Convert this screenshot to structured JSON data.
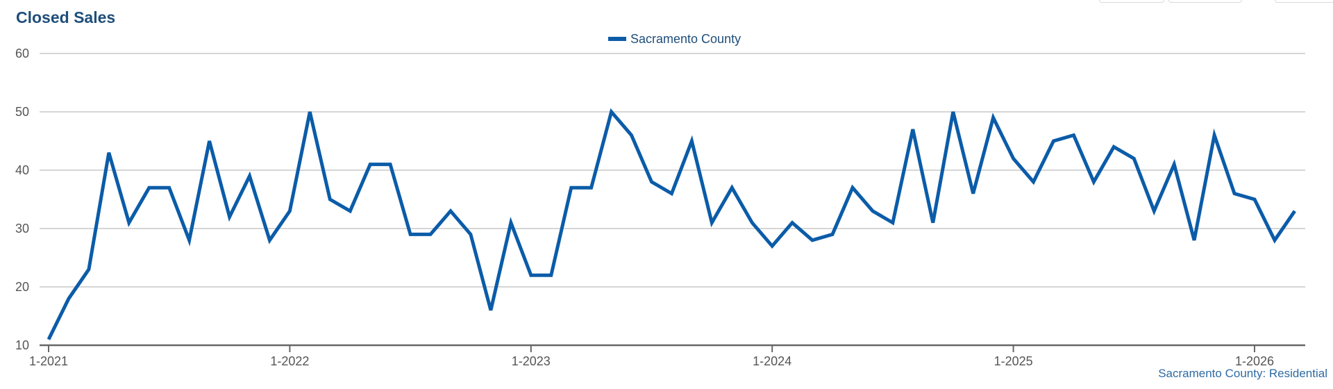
{
  "title": "Closed Sales",
  "footer": "Sacramento County: Residential",
  "colors": {
    "series": "#0b5ca8",
    "grid": "#c8c8c8",
    "axis": "#666666",
    "title": "#1f4e79"
  },
  "chart_data": {
    "type": "line",
    "title": "Closed Sales",
    "ylim": [
      10,
      60
    ],
    "yticks": [
      10,
      20,
      30,
      40,
      50,
      60
    ],
    "x_start": "1-2021",
    "x_frequency": "monthly",
    "xticks": [
      "1-2021",
      "1-2022",
      "1-2023",
      "1-2024",
      "1-2025",
      "1-2026"
    ],
    "grid": true,
    "legend_position": "top-center",
    "series": [
      {
        "name": "Sacramento County",
        "values": [
          11,
          18,
          23,
          43,
          31,
          37,
          37,
          28,
          45,
          32,
          39,
          28,
          33,
          50,
          35,
          33,
          41,
          41,
          29,
          29,
          33,
          29,
          16,
          31,
          22,
          22,
          37,
          37,
          50,
          46,
          38,
          36,
          45,
          31,
          37,
          31,
          27,
          31,
          28,
          29,
          37,
          33,
          31,
          47,
          31,
          50,
          36,
          49,
          42,
          38,
          45,
          46,
          38,
          44,
          42,
          33,
          41,
          28,
          46,
          36,
          35,
          28,
          33
        ]
      }
    ]
  }
}
